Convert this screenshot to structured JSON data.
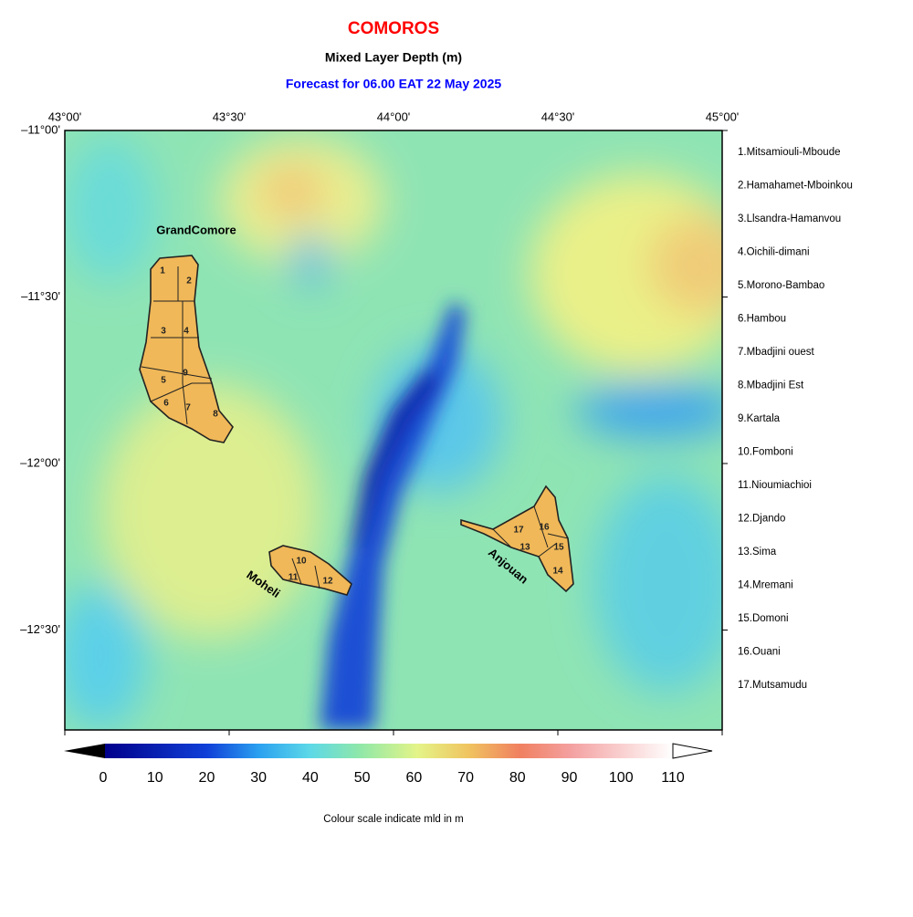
{
  "header": {
    "title": "COMOROS",
    "subtitle": "Mixed Layer Depth (m)",
    "forecast": "Forecast for  06.00 EAT 22 May 2025"
  },
  "map": {
    "lon_ticks": [
      "43°00'",
      "43°30'",
      "44°00'",
      "44°30'",
      "45°00'"
    ],
    "lat_ticks": [
      "–11°00'",
      "–11°30'",
      "–12°00'",
      "–12°30'"
    ],
    "island_labels": [
      "GrandComore",
      "Moheli",
      "Anjouan"
    ],
    "district_numbers": [
      "1",
      "2",
      "3",
      "4",
      "5",
      "6",
      "7",
      "8",
      "9",
      "10",
      "11",
      "12",
      "13",
      "14",
      "15",
      "16",
      "17"
    ]
  },
  "legend": {
    "regions": [
      "1.Mitsamiouli-Mboude",
      "2.Hamahamet-Mboinkou",
      "3.Llsandra-Hamanvou",
      "4.Oichili-dimani",
      "5.Morono-Bambao",
      "6.Hambou",
      "7.Mbadjini ouest",
      "8.Mbadjini Est",
      "9.Kartala",
      "10.Fomboni",
      "11.Nioumiachioi",
      "12.Djando",
      "13.Sima",
      "14.Mremani",
      "15.Domoni",
      "16.Ouani",
      "17.Mutsamudu"
    ]
  },
  "colorbar": {
    "ticks": [
      0,
      10,
      20,
      30,
      40,
      50,
      60,
      70,
      80,
      90,
      100,
      110
    ],
    "caption": "Colour scale indicate mld in m"
  }
}
